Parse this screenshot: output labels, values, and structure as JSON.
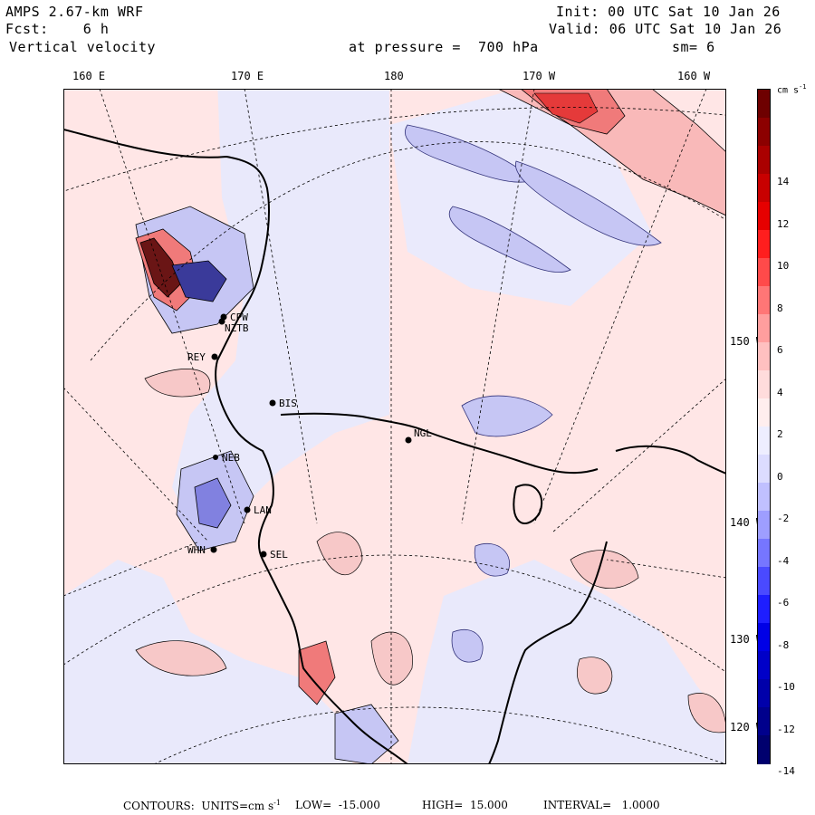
{
  "header": {
    "model": "AMPS 2.67-km WRF",
    "init": "Init: 00 UTC Sat 10 Jan 26",
    "forecast": "Fcst:    6 h",
    "valid": "Valid: 06 UTC Sat 10 Jan 26",
    "field": "Vertical velocity",
    "level": "at pressure =  700 hPa",
    "smoothing": "sm= 6"
  },
  "longitude_labels": [
    "160 E",
    "170 E",
    "180",
    "170 W",
    "160 W"
  ],
  "latitude_labels": [
    "150 W",
    "140 W",
    "130 W",
    "120 W"
  ],
  "stations": [
    "CPW",
    "NZTB",
    "REY",
    "BIS",
    "NGL",
    "LAN",
    "SEL",
    "WHN",
    "NEB"
  ],
  "colorbar": {
    "units": "cm s",
    "units_exp": "-1",
    "ticks": [
      "14",
      "12",
      "10",
      "8",
      "6",
      "4",
      "2",
      "0",
      "-2",
      "-4",
      "-6",
      "-8",
      "-10",
      "-12",
      "-14"
    ],
    "colors": [
      "#6e0000",
      "#8c0000",
      "#aa0000",
      "#c80000",
      "#e60000",
      "#ff1e1e",
      "#ff4a4a",
      "#ff7676",
      "#ff9e9e",
      "#ffc0c0",
      "#ffdcdc",
      "#ffeeee",
      "#eeeeff",
      "#dcdcff",
      "#c0c0ff",
      "#9e9eff",
      "#7676ff",
      "#4a4aff",
      "#1e1eff",
      "#0000e6",
      "#0000c8",
      "#0000aa",
      "#00008c",
      "#00006e"
    ]
  },
  "footer": {
    "contours": "CONTOURS:  UNITS=cm s",
    "exp": "-1",
    "low": "LOW=  -15.000",
    "high": "HIGH=  15.000",
    "interval": "INTERVAL=   1.0000"
  }
}
